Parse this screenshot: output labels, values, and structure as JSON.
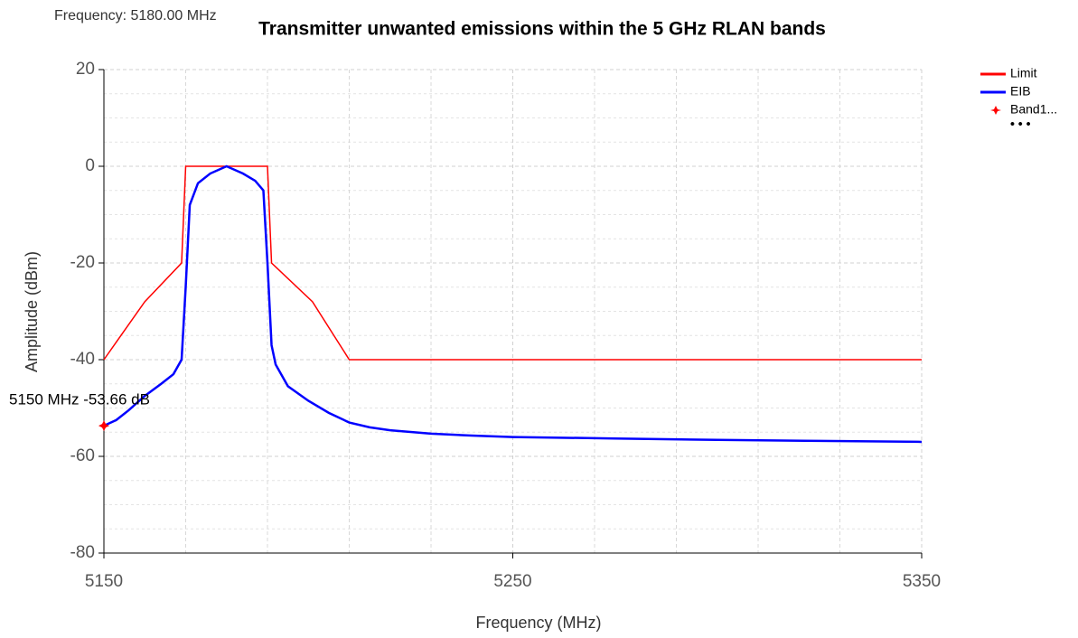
{
  "chart_data": {
    "type": "line",
    "title": "Transmitter unwanted emissions within the 5 GHz RLAN bands",
    "status": "Frequency: 5180.00 MHz",
    "x_label": "Frequency (MHz)",
    "y_label": "Amplitude (dBm)",
    "xlim": [
      5150,
      5350
    ],
    "ylim": [
      -80,
      20
    ],
    "xticks": [
      5150,
      5250,
      5350
    ],
    "xminorticks": [
      5170,
      5190,
      5210,
      5230,
      5270,
      5290,
      5310,
      5330
    ],
    "yticks": [
      -80,
      -60,
      -40,
      -20,
      0,
      20
    ],
    "yminorticks": [
      -75,
      -70,
      -65,
      -55,
      -50,
      -45,
      -35,
      -30,
      -25,
      -15,
      -10,
      -5,
      5,
      10,
      15
    ],
    "grid": true,
    "series": [
      {
        "name": "Limit",
        "color": "#ff0000",
        "x": [
          5150,
          5160,
          5169,
          5170,
          5190,
          5191,
          5201,
          5210,
          5350
        ],
        "values": [
          -40,
          -28,
          -20,
          0,
          0,
          -20,
          -28,
          -40,
          -40
        ]
      },
      {
        "name": "EIB",
        "color": "#0000ff",
        "x": [
          5150,
          5153,
          5156,
          5160,
          5164,
          5167,
          5169,
          5170,
          5171,
          5173,
          5176,
          5180,
          5184,
          5187,
          5189,
          5190,
          5191,
          5192,
          5195,
          5200,
          5205,
          5210,
          5215,
          5220,
          5230,
          5240,
          5250,
          5275,
          5300,
          5325,
          5350
        ],
        "values": [
          -53.66,
          -52.5,
          -50.5,
          -47.5,
          -45,
          -43,
          -40,
          -25,
          -8,
          -3.5,
          -1.5,
          0,
          -1.5,
          -3,
          -5,
          -20,
          -37,
          -41,
          -45.5,
          -48.5,
          -51,
          -53,
          -54,
          -54.6,
          -55.3,
          -55.7,
          -56,
          -56.3,
          -56.6,
          -56.8,
          -57
        ]
      },
      {
        "name": "Band1...",
        "color": "#ff0000",
        "marker": true,
        "x": [
          5150
        ],
        "values": [
          -53.66
        ],
        "value_labels": [
          "5150 MHz  -53.66 dB"
        ]
      }
    ],
    "legend_more": "• • •",
    "legend_position": "upper right"
  }
}
